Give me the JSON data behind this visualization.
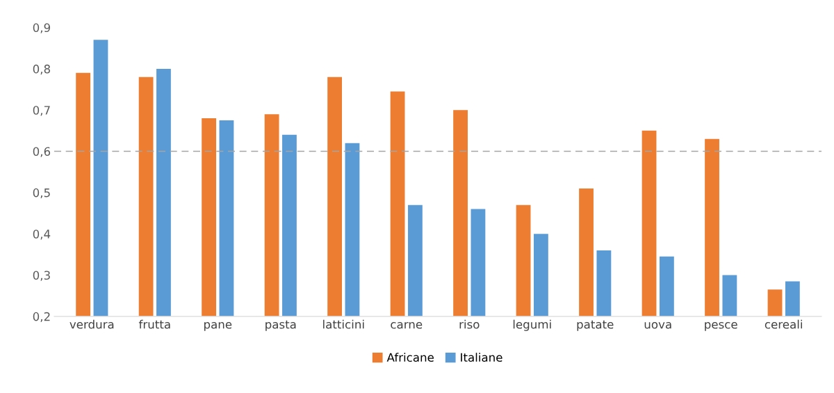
{
  "chart_data": {
    "type": "bar",
    "categories": [
      "verdura",
      "frutta",
      "pane",
      "pasta",
      "latticini",
      "carne",
      "riso",
      "legumi",
      "patate",
      "uova",
      "pesce",
      "cereali"
    ],
    "series": [
      {
        "name": "Africane",
        "color": "#ed7d31",
        "values": [
          0.79,
          0.78,
          0.68,
          0.69,
          0.78,
          0.745,
          0.7,
          0.47,
          0.51,
          0.65,
          0.63,
          0.265
        ]
      },
      {
        "name": "Italiane",
        "color": "#5b9bd5",
        "values": [
          0.87,
          0.8,
          0.675,
          0.64,
          0.62,
          0.47,
          0.46,
          0.4,
          0.36,
          0.345,
          0.3,
          0.285
        ]
      }
    ],
    "ylim": [
      0.2,
      0.9
    ],
    "yticks": [
      {
        "value": 0.2,
        "label": "0,2"
      },
      {
        "value": 0.3,
        "label": "0,3"
      },
      {
        "value": 0.4,
        "label": "0,4"
      },
      {
        "value": 0.5,
        "label": "0,5"
      },
      {
        "value": 0.6,
        "label": "0,6"
      },
      {
        "value": 0.7,
        "label": "0,7"
      },
      {
        "value": 0.8,
        "label": "0,8"
      },
      {
        "value": 0.9,
        "label": "0,9"
      }
    ],
    "ref_lines": [
      {
        "axis": "y",
        "value": 0.6,
        "color": "#a5a5a5",
        "line_style": "dashed"
      }
    ],
    "grid": false,
    "legend": "bottom"
  }
}
